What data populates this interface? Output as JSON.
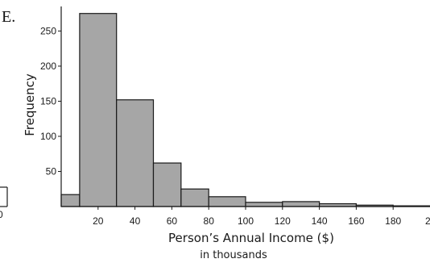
{
  "figure_label": "E.",
  "left_fragment_label": "0",
  "chart_data": {
    "type": "bar",
    "bins": [
      {
        "x0": 0,
        "x1": 10,
        "value": 17
      },
      {
        "x0": 10,
        "x1": 30,
        "value": 275
      },
      {
        "x0": 30,
        "x1": 50,
        "value": 152
      },
      {
        "x0": 50,
        "x1": 65,
        "value": 62
      },
      {
        "x0": 65,
        "x1": 80,
        "value": 25
      },
      {
        "x0": 80,
        "x1": 100,
        "value": 14
      },
      {
        "x0": 100,
        "x1": 120,
        "value": 6
      },
      {
        "x0": 120,
        "x1": 140,
        "value": 7
      },
      {
        "x0": 140,
        "x1": 160,
        "value": 4
      },
      {
        "x0": 160,
        "x1": 180,
        "value": 2
      },
      {
        "x0": 180,
        "x1": 200,
        "value": 1
      }
    ],
    "x_ticks": [
      20,
      40,
      60,
      80,
      100,
      120,
      140,
      160,
      180
    ],
    "x_cut_tick": "2",
    "y_ticks": [
      50,
      100,
      150,
      200,
      250
    ],
    "xlabel": "Person’s Annual Income ($)",
    "xlabel_sub": "in thousands",
    "ylabel": "Frequency",
    "xlim": [
      0,
      200
    ],
    "ylim": [
      0,
      285
    ],
    "grid": false
  }
}
